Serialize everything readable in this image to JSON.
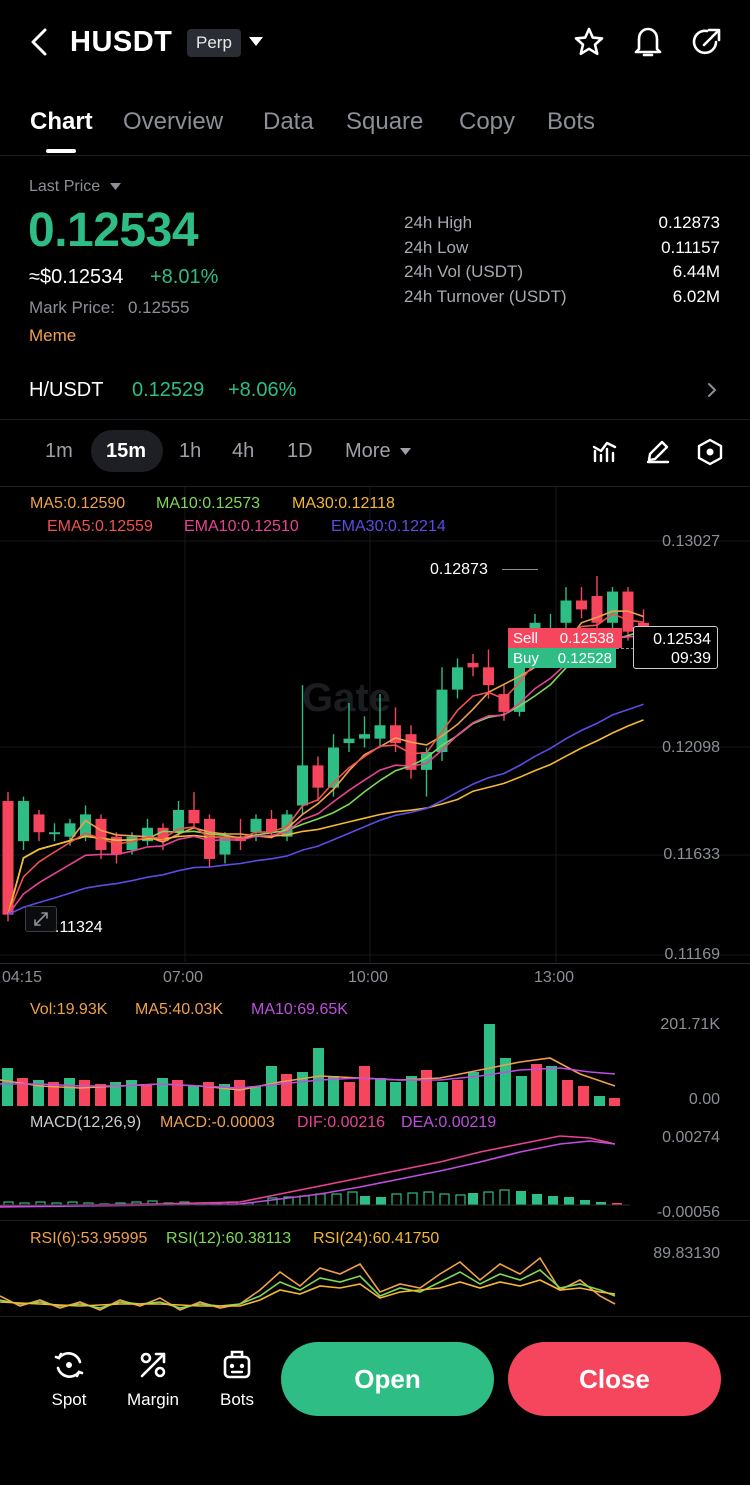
{
  "header": {
    "title": "HUSDT",
    "badge": "Perp",
    "icons": [
      "back-icon",
      "chevron-down-icon",
      "star-icon",
      "bell-icon",
      "share-icon"
    ]
  },
  "tabs": [
    {
      "label": "Chart",
      "active": true
    },
    {
      "label": "Overview",
      "active": false
    },
    {
      "label": "Data",
      "active": false
    },
    {
      "label": "Square",
      "active": false
    },
    {
      "label": "Copy",
      "active": false
    },
    {
      "label": "Bots",
      "active": false
    }
  ],
  "price": {
    "last_price_label": "Last Price",
    "last_price": "0.12534",
    "usd_price": "≈$0.12534",
    "change": "+8.01%",
    "mark_price_label": "Mark Price:",
    "mark_price": "0.12555",
    "tag": "Meme"
  },
  "stats": [
    {
      "label": "24h  High",
      "value": "0.12873"
    },
    {
      "label": "24h  Low",
      "value": "0.11157"
    },
    {
      "label": "24h  Vol (USDT)",
      "value": "6.44M"
    },
    {
      "label": "24h  Turnover (USDT)",
      "value": "6.02M"
    }
  ],
  "spot_pair": {
    "name": "H/USDT",
    "price": "0.12529",
    "change": "+8.06%"
  },
  "intervals": {
    "items": [
      "1m",
      "15m",
      "1h",
      "4h",
      "1D"
    ],
    "active": "15m",
    "more_label": "More"
  },
  "chart": {
    "ma_labels": [
      "MA5:0.12590",
      "MA10:0.12573",
      "MA30:0.12118"
    ],
    "ema_labels": [
      "EMA5:0.12559",
      "EMA10:0.12510",
      "EMA30:0.12214"
    ],
    "y_axis": [
      "0.13027",
      "0.12098",
      "0.11633",
      "0.11169"
    ],
    "x_axis": [
      "04:15",
      "07:00",
      "10:00",
      "13:00"
    ],
    "high_label": "0.12873",
    "low_label": "0.11324",
    "sell_label": "Sell",
    "sell_price": "0.12538",
    "buy_label": "Buy",
    "buy_price": "0.12528",
    "current_price": "0.12534",
    "countdown": "09:39",
    "watermark": "Gate"
  },
  "volume": {
    "labels": [
      "Vol:19.93K",
      "MA5:40.03K",
      "MA10:69.65K"
    ],
    "y_axis": [
      "201.71K",
      "0.00"
    ]
  },
  "macd": {
    "labels": [
      "MACD(12,26,9)",
      "MACD:-0.00003",
      "DIF:0.00216",
      "DEA:0.00219"
    ],
    "y_axis": [
      "0.00274",
      "-0.00056"
    ]
  },
  "rsi": {
    "labels": [
      "RSI(6):53.95995",
      "RSI(12):60.38113",
      "RSI(24):60.41750"
    ],
    "y_axis": [
      "89.83130"
    ]
  },
  "bottom": {
    "spot_label": "Spot",
    "margin_label": "Margin",
    "bots_label": "Bots",
    "open_label": "Open",
    "close_label": "Close"
  },
  "colors": {
    "up": "#2ebd85",
    "down": "#f6465d",
    "ma5": "#f0a04b",
    "ma10": "#7ed957",
    "ma30": "#f5b833",
    "ema5": "#ef5350",
    "ema10": "#e84393",
    "ema30": "#5b4de3"
  },
  "chart_data": {
    "type": "candlestick",
    "interval": "15m",
    "y_range": [
      0.11169,
      0.13027
    ],
    "candles": [
      {
        "o": 0.1186,
        "h": 0.119,
        "l": 0.1132,
        "c": 0.1135
      },
      {
        "o": 0.1168,
        "h": 0.1188,
        "l": 0.1164,
        "c": 0.1186
      },
      {
        "o": 0.118,
        "h": 0.1182,
        "l": 0.1168,
        "c": 0.1172
      },
      {
        "o": 0.1172,
        "h": 0.1176,
        "l": 0.1168,
        "c": 0.1172
      },
      {
        "o": 0.117,
        "h": 0.1178,
        "l": 0.1166,
        "c": 0.1176
      },
      {
        "o": 0.117,
        "h": 0.1184,
        "l": 0.1168,
        "c": 0.118
      },
      {
        "o": 0.1178,
        "h": 0.118,
        "l": 0.116,
        "c": 0.1164
      },
      {
        "o": 0.117,
        "h": 0.1172,
        "l": 0.1158,
        "c": 0.1162
      },
      {
        "o": 0.1164,
        "h": 0.1172,
        "l": 0.1162,
        "c": 0.117
      },
      {
        "o": 0.1168,
        "h": 0.1178,
        "l": 0.1166,
        "c": 0.1174
      },
      {
        "o": 0.1174,
        "h": 0.1176,
        "l": 0.1164,
        "c": 0.1168
      },
      {
        "o": 0.1172,
        "h": 0.1186,
        "l": 0.117,
        "c": 0.1182
      },
      {
        "o": 0.1182,
        "h": 0.119,
        "l": 0.1174,
        "c": 0.1176
      },
      {
        "o": 0.1178,
        "h": 0.118,
        "l": 0.1156,
        "c": 0.116
      },
      {
        "o": 0.1162,
        "h": 0.1172,
        "l": 0.1158,
        "c": 0.117
      },
      {
        "o": 0.117,
        "h": 0.1178,
        "l": 0.1164,
        "c": 0.1168
      },
      {
        "o": 0.1172,
        "h": 0.118,
        "l": 0.1168,
        "c": 0.1178
      },
      {
        "o": 0.1178,
        "h": 0.1182,
        "l": 0.117,
        "c": 0.1172
      },
      {
        "o": 0.117,
        "h": 0.1182,
        "l": 0.1168,
        "c": 0.118
      },
      {
        "o": 0.1184,
        "h": 0.1238,
        "l": 0.118,
        "c": 0.1202
      },
      {
        "o": 0.1202,
        "h": 0.1206,
        "l": 0.1186,
        "c": 0.1192
      },
      {
        "o": 0.1192,
        "h": 0.1216,
        "l": 0.1188,
        "c": 0.121
      },
      {
        "o": 0.1212,
        "h": 0.123,
        "l": 0.1208,
        "c": 0.1214
      },
      {
        "o": 0.1214,
        "h": 0.1224,
        "l": 0.121,
        "c": 0.1216
      },
      {
        "o": 0.1214,
        "h": 0.1234,
        "l": 0.121,
        "c": 0.122
      },
      {
        "o": 0.122,
        "h": 0.1228,
        "l": 0.1208,
        "c": 0.1212
      },
      {
        "o": 0.1216,
        "h": 0.122,
        "l": 0.1196,
        "c": 0.12
      },
      {
        "o": 0.12,
        "h": 0.121,
        "l": 0.1188,
        "c": 0.1208
      },
      {
        "o": 0.1208,
        "h": 0.1246,
        "l": 0.1204,
        "c": 0.1236
      },
      {
        "o": 0.1236,
        "h": 0.125,
        "l": 0.1232,
        "c": 0.1246
      },
      {
        "o": 0.1248,
        "h": 0.1252,
        "l": 0.1242,
        "c": 0.1246
      },
      {
        "o": 0.1246,
        "h": 0.1254,
        "l": 0.1232,
        "c": 0.1238
      },
      {
        "o": 0.1234,
        "h": 0.1238,
        "l": 0.1222,
        "c": 0.1226
      },
      {
        "o": 0.1226,
        "h": 0.1258,
        "l": 0.1224,
        "c": 0.1254
      },
      {
        "o": 0.126,
        "h": 0.127,
        "l": 0.1252,
        "c": 0.1266
      },
      {
        "o": 0.1258,
        "h": 0.127,
        "l": 0.1256,
        "c": 0.1262
      },
      {
        "o": 0.1266,
        "h": 0.1282,
        "l": 0.1262,
        "c": 0.1276
      },
      {
        "o": 0.1276,
        "h": 0.1282,
        "l": 0.1268,
        "c": 0.1272
      },
      {
        "o": 0.1278,
        "h": 0.1287,
        "l": 0.1256,
        "c": 0.1266
      },
      {
        "o": 0.1266,
        "h": 0.1282,
        "l": 0.1262,
        "c": 0.128
      },
      {
        "o": 0.128,
        "h": 0.1282,
        "l": 0.1258,
        "c": 0.1262
      },
      {
        "o": 0.1266,
        "h": 0.1272,
        "l": 0.126,
        "c": 0.1264
      }
    ]
  }
}
